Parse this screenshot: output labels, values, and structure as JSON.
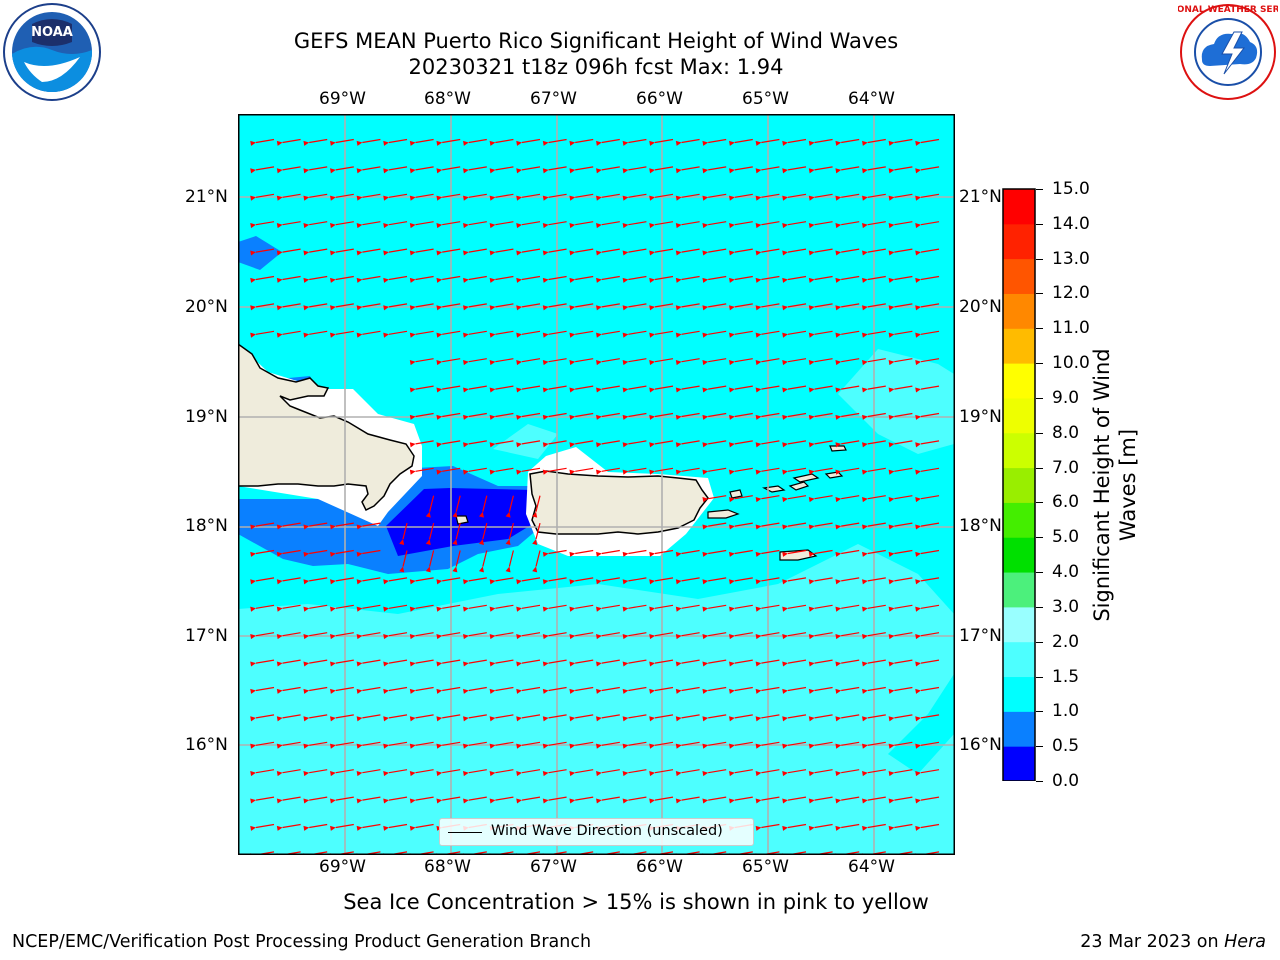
{
  "title_line1": "GEFS MEAN Puerto Rico Significant Height of Wind Waves",
  "title_line2": "20230321 t18z 096h fcst   Max: 1.94",
  "lon_labels": [
    "69°W",
    "68°W",
    "67°W",
    "66°W",
    "65°W",
    "64°W"
  ],
  "lat_labels": [
    "21°N",
    "20°N",
    "19°N",
    "18°N",
    "17°N",
    "16°N"
  ],
  "colorbar": {
    "label": "Significant Height of Wind Waves [m]",
    "ticks": [
      "15.0",
      "14.0",
      "13.0",
      "12.0",
      "11.0",
      "10.0",
      "9.0",
      "8.0",
      "7.0",
      "6.0",
      "5.0",
      "4.0",
      "3.0",
      "2.0",
      "1.5",
      "1.0",
      "0.5",
      "0.0"
    ],
    "colors": [
      "#0000ff",
      "#0a80ff",
      "#00ffff",
      "#4dffff",
      "#99ffff",
      "#4cf07c",
      "#00e000",
      "#44ee00",
      "#99ee00",
      "#ccff00",
      "#eeff00",
      "#ffff00",
      "#ffbb00",
      "#ff8800",
      "#ff5500",
      "#ff2200",
      "#ff0000"
    ]
  },
  "legend_label": "Wind Wave Direction (unscaled)",
  "note": "Sea Ice Concentration > 15% is shown in pink to yellow",
  "footer_left": "NCEP/EMC/Verification Post Processing Product Generation Branch",
  "footer_right_prefix": "23 Mar 2023 on ",
  "footer_right_host": "Hera",
  "logo_left": "NOAA",
  "logo_right_text": "NATIONAL WEATHER SERVICE",
  "map_colors": {
    "ocean_1_1p5": "#00ffff",
    "ocean_1p5_2": "#4dffff",
    "ocean_05_1": "#0a80ff",
    "ocean_0_05": "#0000ff",
    "land": "#efecdc",
    "arrow": "#ff0000"
  }
}
